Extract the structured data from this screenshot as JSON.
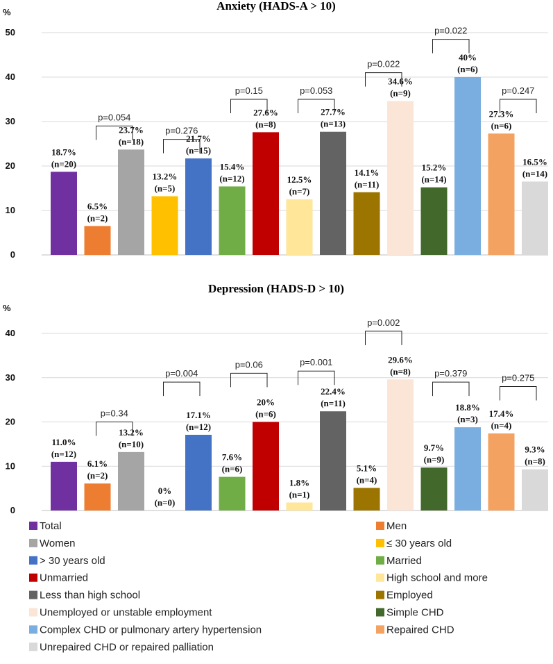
{
  "chart_data": [
    {
      "type": "bar",
      "title": "Anxiety (HADS-A > 10)",
      "ylabel": "%",
      "ylim": [
        0,
        50
      ],
      "yticks": [
        0,
        10,
        20,
        30,
        40,
        50
      ],
      "grid": true,
      "categories": [
        "Total",
        "Men",
        "Women",
        "≤ 30 years old",
        "> 30 years old",
        "Married",
        "Unmarried",
        "High school and more",
        "Less than high school",
        "Employed",
        "Unemployed or unstable employment",
        "Simple CHD",
        "Complex CHD or pulmonary artery hypertension",
        "Repaired CHD",
        "Unrepaired CHD or repaired palliation"
      ],
      "values": [
        18.7,
        6.5,
        23.7,
        13.2,
        21.7,
        15.4,
        27.6,
        12.5,
        27.7,
        14.1,
        34.6,
        15.2,
        40,
        27.3,
        16.5
      ],
      "data_labels": [
        [
          "18.7%",
          "(n=20)"
        ],
        [
          "6.5%",
          "(n=2)"
        ],
        [
          "23.7%",
          "(n=18)"
        ],
        [
          "13.2%",
          "(n=5)"
        ],
        [
          "21.7%",
          "(n=15)"
        ],
        [
          "15.4%",
          "(n=12)"
        ],
        [
          "27.6%",
          "(n=8)"
        ],
        [
          "12.5%",
          "(n=7)"
        ],
        [
          "27.7%",
          "(n=13)"
        ],
        [
          "14.1%",
          "(n=11)"
        ],
        [
          "34.6%",
          "(n=9)"
        ],
        [
          "15.2%",
          "(n=14)"
        ],
        [
          "40%",
          "(n=6)"
        ],
        [
          "27.3%",
          "(n=6)"
        ],
        [
          "16.5%",
          "(n=14)"
        ]
      ],
      "comparisons": [
        {
          "from": 1,
          "to": 2,
          "label": "p=0.054",
          "level": 29
        },
        {
          "from": 3,
          "to": 4,
          "label": "p=0.276",
          "level": 26
        },
        {
          "from": 5,
          "to": 6,
          "label": "p=0.15",
          "level": 35
        },
        {
          "from": 7,
          "to": 8,
          "label": "p=0.053",
          "level": 35
        },
        {
          "from": 9,
          "to": 10,
          "label": "p=0.022",
          "level": 41
        },
        {
          "from": 11,
          "to": 12,
          "label": "p=0.022",
          "level": 48.5
        },
        {
          "from": 13,
          "to": 14,
          "label": "p=0.247",
          "level": 35
        }
      ]
    },
    {
      "type": "bar",
      "title": "Depression (HADS-D > 10)",
      "ylabel": "%",
      "ylim": [
        0,
        40
      ],
      "yticks": [
        0,
        10,
        20,
        30,
        40
      ],
      "grid": true,
      "categories": [
        "Total",
        "Men",
        "Women",
        "≤ 30 years old",
        "> 30 years old",
        "Married",
        "Unmarried",
        "High school and more",
        "Less than high school",
        "Employed",
        "Unemployed or unstable employment",
        "Simple CHD",
        "Complex CHD or pulmonary artery hypertension",
        "Repaired CHD",
        "Unrepaired CHD or repaired palliation"
      ],
      "values": [
        11.0,
        6.1,
        13.2,
        0,
        17.1,
        7.6,
        20,
        1.8,
        22.4,
        5.1,
        29.6,
        9.7,
        18.8,
        17.4,
        9.3
      ],
      "data_labels": [
        [
          "11.0%",
          "(n=12)"
        ],
        [
          "6.1%",
          "(n=2)"
        ],
        [
          "13.2%",
          "(n=10)"
        ],
        [
          "0%",
          "(n=0)"
        ],
        [
          "17.1%",
          "(n=12)"
        ],
        [
          "7.6%",
          "(n=6)"
        ],
        [
          "20%",
          "(n=6)"
        ],
        [
          "1.8%",
          "(n=1)"
        ],
        [
          "22.4%",
          "(n=11)"
        ],
        [
          "5.1%",
          "(n=4)"
        ],
        [
          "29.6%",
          "(n=8)"
        ],
        [
          "9.7%",
          "(n=9)"
        ],
        [
          "18.8%",
          "(n=3)"
        ],
        [
          "17.4%",
          "(n=4)"
        ],
        [
          "9.3%",
          "(n=8)"
        ]
      ],
      "comparisons": [
        {
          "from": 1,
          "to": 2,
          "label": "p=0.34",
          "level": 20
        },
        {
          "from": 3,
          "to": 4,
          "label": "p=0.004",
          "level": 29
        },
        {
          "from": 5,
          "to": 6,
          "label": "p=0.06",
          "level": 31
        },
        {
          "from": 7,
          "to": 8,
          "label": "p=0.001",
          "level": 31.5
        },
        {
          "from": 9,
          "to": 10,
          "label": "p=0.002",
          "level": 40.5
        },
        {
          "from": 11,
          "to": 12,
          "label": "p=0.379",
          "level": 29
        },
        {
          "from": 13,
          "to": 14,
          "label": "p=0.275",
          "level": 28
        }
      ]
    }
  ],
  "colors": [
    "#7030a0",
    "#ed7d31",
    "#a5a5a5",
    "#ffc000",
    "#4472c4",
    "#70ad47",
    "#c00000",
    "#ffe699",
    "#636363",
    "#9c7400",
    "#fbe5d6",
    "#43682b",
    "#7aaee0",
    "#f4a261",
    "#d9d9d9"
  ],
  "legend": [
    {
      "label": "Total",
      "color_index": 0
    },
    {
      "label": "Men",
      "color_index": 1
    },
    {
      "label": "Women",
      "color_index": 2
    },
    {
      "label": "≤ 30 years old",
      "color_index": 3
    },
    {
      "label": "> 30 years old",
      "color_index": 4
    },
    {
      "label": "Married",
      "color_index": 5
    },
    {
      "label": "Unmarried",
      "color_index": 6
    },
    {
      "label": "High school and more",
      "color_index": 7
    },
    {
      "label": "Less than high school",
      "color_index": 8
    },
    {
      "label": "Employed",
      "color_index": 9
    },
    {
      "label": "Unemployed or unstable employment",
      "color_index": 10
    },
    {
      "label": "Simple CHD",
      "color_index": 11
    },
    {
      "label": "Complex CHD or pulmonary artery hypertension",
      "color_index": 12
    },
    {
      "label": "Repaired CHD",
      "color_index": 13
    },
    {
      "label": "Unrepaired CHD or repaired palliation",
      "color_index": 14
    }
  ]
}
